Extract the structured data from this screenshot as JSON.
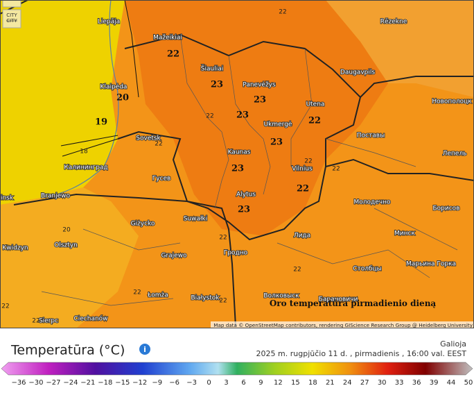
{
  "map": {
    "toggle": [
      "CITY",
      "CITY"
    ],
    "cities": [
      "Liepāja",
      "Mažeikiai",
      "Rēzekne",
      "Šiauliai",
      "Panevėžys",
      "Daugavpils",
      "Klaipėda",
      "Utena",
      "Новополоцк",
      "Ukmergė",
      "Поставы",
      "Sovetsk",
      "Kaunas",
      "Лепель",
      "Vilnius",
      "Калининград",
      "Гусев",
      "Alytus",
      "Молодечно",
      "Борисов",
      "Branjewo",
      "Giżycko",
      "Suwałki",
      "Минск",
      "Kwidzyn",
      "Olsztyn",
      "Лида",
      "Гродно",
      "Grajewo",
      "Марьина Горка",
      "Столбцы",
      "Łomża",
      "Białystok",
      "Волковыск",
      "Барановичи",
      "Ciechanów",
      "Sierpc",
      "insk"
    ],
    "values": [
      "22",
      "23",
      "23",
      "20",
      "19",
      "23",
      "22",
      "23",
      "23",
      "22",
      "23"
    ],
    "small_values": [
      "22",
      "18",
      "22",
      "22",
      "22",
      "22",
      "20",
      "22",
      "22",
      "22",
      "22",
      "22",
      "22"
    ],
    "caption": "Oro temperatūra pirmadienio dieną",
    "attribution": "Map data © OpenStreetMap contributors, rendering GIScience Research Group @ Heidelberg University"
  },
  "legend": {
    "title": "Temperatūra (°C)",
    "info": "i",
    "valid_label": "Galioja",
    "valid_time": "2025 m. rugpjūčio 11 d. , pirmadienis , 16:00 val. EEST",
    "ticks": [
      "−36",
      "−30",
      "−27",
      "−24",
      "−21",
      "−18",
      "−15",
      "−12",
      "−9",
      "−6",
      "−3",
      "0",
      "3",
      "6",
      "9",
      "12",
      "15",
      "18",
      "21",
      "24",
      "27",
      "30",
      "33",
      "36",
      "39",
      "44",
      "50"
    ]
  }
}
